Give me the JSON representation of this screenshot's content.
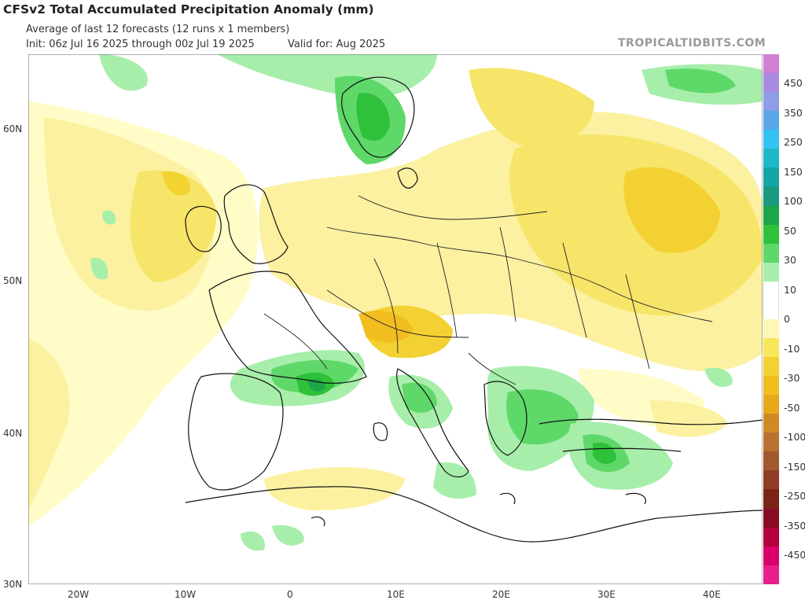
{
  "header": {
    "title": "CFSv2 Total Accumulated Precipitation Anomaly (mm)",
    "subtitle": "Average of last 12 forecasts (12 runs x 1 members)",
    "init": "Init: 06z Jul 16 2025 through 00z Jul 19 2025",
    "valid": "Valid for: Aug 2025",
    "brand": "TROPICALTIDBITS.COM"
  },
  "axes": {
    "lat_labels": [
      "60N",
      "50N",
      "40N",
      "30N"
    ],
    "lon_labels": [
      "20W",
      "10W",
      "0",
      "10E",
      "20E",
      "30E",
      "40E"
    ]
  },
  "colorbar": {
    "labels": [
      "450",
      "350",
      "250",
      "150",
      "100",
      "50",
      "30",
      "10",
      "0",
      "-10",
      "-30",
      "-50",
      "-100",
      "-150",
      "-250",
      "-350",
      "-450"
    ],
    "colors": [
      "#cf80d4",
      "#a88ae0",
      "#8d9de6",
      "#5aa7e8",
      "#34c3f0",
      "#1fb8c9",
      "#14a6a6",
      "#1b9a82",
      "#1ea54a",
      "#2fc13a",
      "#5fd86a",
      "#a7eeab",
      "#ffffff",
      "#ffffff",
      "#fff7b8",
      "#f8e65b",
      "#f4d132",
      "#f1bd1f",
      "#e8a81c",
      "#cf8a25",
      "#b87130",
      "#a0582f",
      "#8e3c26",
      "#7b2416",
      "#870d24",
      "#b3003e",
      "#d8006a",
      "#e71f8c"
    ]
  },
  "map_regions": {
    "wet_areas": [
      "Norway",
      "France south / Pyrenees",
      "Italy",
      "Balkans",
      "Aegean / Turkey west",
      "Mediterranean east"
    ],
    "dry_areas": [
      "North Atlantic",
      "Central Europe",
      "Eastern Europe",
      "Russia",
      "Iberia coast"
    ]
  }
}
